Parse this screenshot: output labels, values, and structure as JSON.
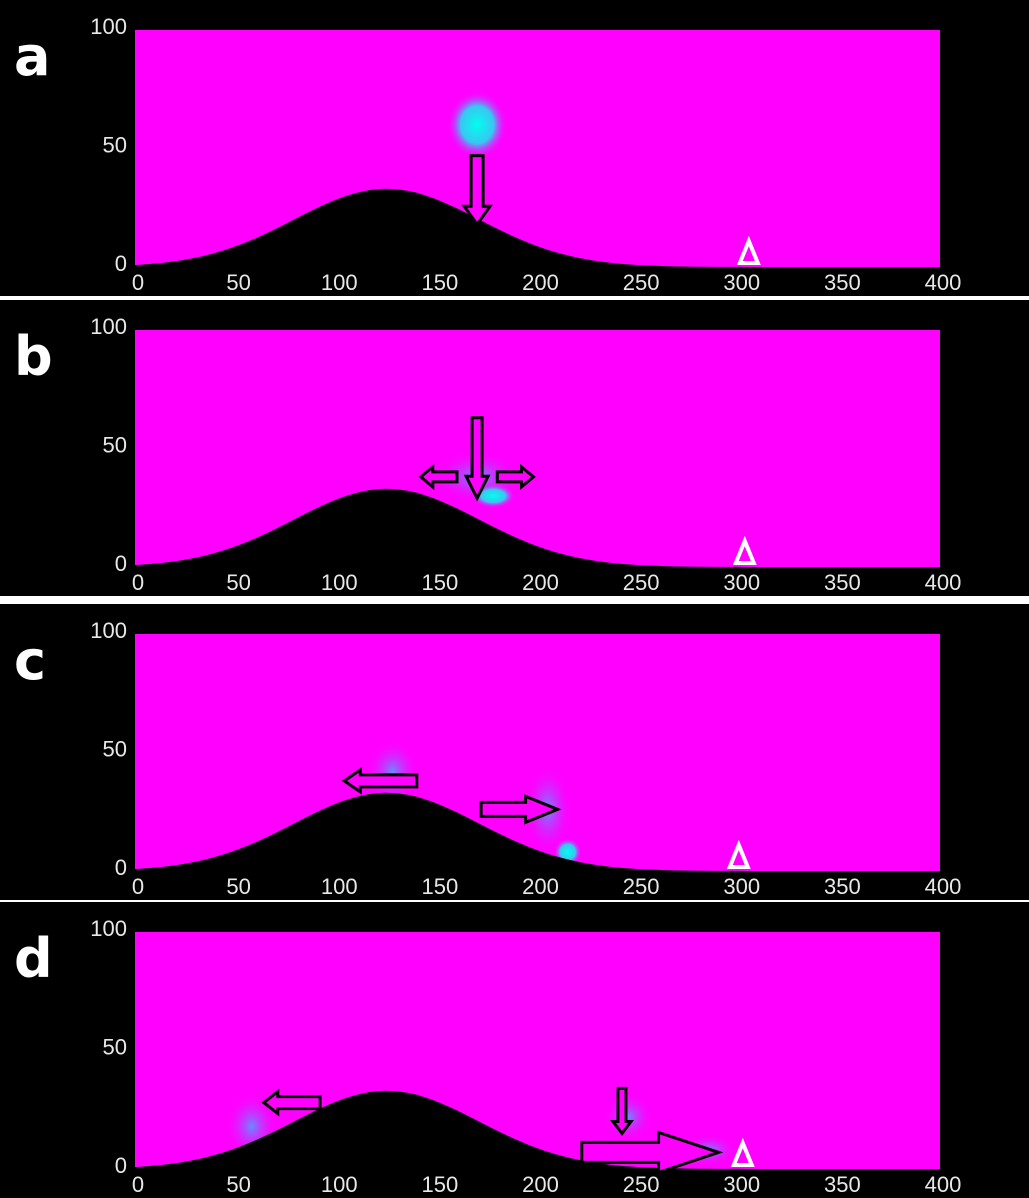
{
  "chart_data": [
    {
      "type": "field",
      "label": "a",
      "xlim": [
        0,
        400
      ],
      "ylim": [
        0,
        100
      ],
      "xticks": [
        0,
        50,
        100,
        150,
        200,
        250,
        300,
        350,
        400
      ],
      "yticks": [
        0,
        50,
        100
      ]
    },
    {
      "type": "field",
      "label": "b",
      "xlim": [
        0,
        400
      ],
      "ylim": [
        0,
        100
      ],
      "xticks": [
        0,
        50,
        100,
        150,
        200,
        250,
        300,
        350,
        400
      ],
      "yticks": [
        0,
        50,
        100
      ]
    },
    {
      "type": "field",
      "label": "c",
      "xlim": [
        0,
        400
      ],
      "ylim": [
        0,
        100
      ],
      "xticks": [
        0,
        50,
        100,
        150,
        200,
        250,
        300,
        350,
        400
      ],
      "yticks": [
        0,
        50,
        100
      ]
    },
    {
      "type": "field",
      "label": "d",
      "xlim": [
        0,
        400
      ],
      "ylim": [
        0,
        100
      ],
      "xticks": [
        0,
        50,
        100,
        150,
        200,
        250,
        300,
        350,
        400
      ],
      "yticks": [
        0,
        50,
        100
      ]
    }
  ]
}
